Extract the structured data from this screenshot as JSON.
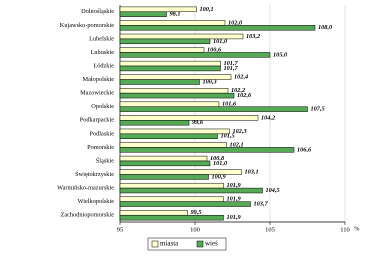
{
  "chart_data": {
    "type": "bar",
    "orientation": "horizontal",
    "x_label": "%",
    "categories": [
      "Dolnośląskie",
      "Kujawsko-pomorskie",
      "Lubelskie",
      "Lubuskie",
      "Łódzkie",
      "Małopolskie",
      "Mazowieckie",
      "Opolskie",
      "Podkarpackie",
      "Podlaskie",
      "Pomorskie",
      "Śląskie",
      "Świętokrzyskie",
      "Warmińsko-mazurskie",
      "Wielkopolskie",
      "Zachodniopomorskie"
    ],
    "series": [
      {
        "name": "miasta",
        "color": "#ffffcc",
        "values": [
          100.1,
          102.0,
          103.2,
          100.6,
          101.7,
          102.4,
          102.2,
          101.6,
          104.2,
          102.3,
          102.1,
          100.8,
          103.1,
          101.9,
          101.9,
          99.5
        ],
        "value_labels": [
          "100,1",
          "102,0",
          "103,2",
          "100,6",
          "101,7",
          "102,4",
          "102,2",
          "101,6",
          "104,2",
          "102,3",
          "102,1",
          "100,8",
          "103,1",
          "101,9",
          "101,9",
          "99,5"
        ]
      },
      {
        "name": "wieś",
        "color": "#55aa55",
        "values": [
          98.1,
          108.0,
          101.0,
          105.0,
          101.7,
          100.3,
          102.6,
          107.5,
          99.6,
          101.5,
          106.6,
          101.0,
          100.9,
          104.5,
          103.7,
          101.9
        ],
        "value_labels": [
          "98,1",
          "108,0",
          "101,0",
          "105,0",
          "101,7",
          "100,3",
          "102,6",
          "107,5",
          "99,6",
          "101,5",
          "106,6",
          "101,0",
          "100,9",
          "104,5",
          "103,7",
          "101,9"
        ]
      }
    ],
    "xlim": [
      95,
      110
    ],
    "xticks": [
      95,
      100,
      105,
      110
    ],
    "grid": true
  }
}
